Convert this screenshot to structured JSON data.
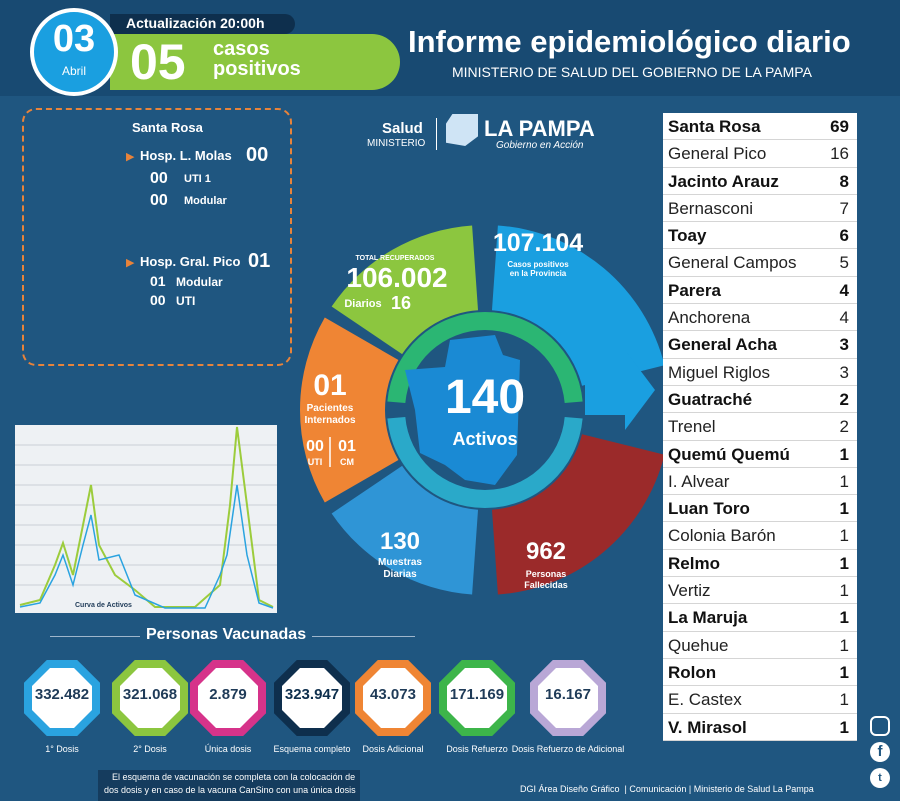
{
  "header": {
    "day": "03",
    "month": "Abril",
    "update": "Actualización 20:00h",
    "new_cases": "05",
    "new_cases_line1": "casos",
    "new_cases_line2": "positivos",
    "title": "Informe epidemiológico diario",
    "subtitle": "MINISTERIO DE SALUD DEL GOBIERNO DE LA PAMPA"
  },
  "hospitals": {
    "region": "Santa Rosa",
    "items": [
      {
        "name": "Hosp. L. Molas",
        "value": "00",
        "sub": [
          {
            "value": "00",
            "label": "UTI 1"
          },
          {
            "value": "00",
            "label": "Modular"
          }
        ]
      },
      {
        "name": "Hosp. Gral. Pico",
        "value": "01",
        "sub": [
          {
            "value": "01",
            "label": "Modular"
          },
          {
            "value": "00",
            "label": "UTI"
          }
        ]
      }
    ]
  },
  "logo": {
    "salud": "Salud",
    "ministerio": "MINISTERIO",
    "province": "LA PAMPA",
    "slogan": "Gobierno en Acción"
  },
  "wheel": {
    "total": {
      "value": "107.104",
      "line1": "Casos positivos",
      "line2": "en la Provincia"
    },
    "recovered": {
      "label": "TOTAL RECUPERADOS",
      "value": "106.002",
      "daily_label": "Diarios",
      "daily": "16"
    },
    "hospitalized": {
      "value": "01",
      "line1": "Pacientes",
      "line2": "Internados",
      "uti": "00",
      "uti_label": "UTI",
      "cm": "01",
      "cm_label": "CM"
    },
    "samples": {
      "value": "130",
      "line1": "Muestras",
      "line2": "Diarias"
    },
    "deaths": {
      "value": "962",
      "line1": "Personas",
      "line2": "Fallecidas"
    },
    "active": {
      "value": "140",
      "label": "Activos"
    }
  },
  "curve": {
    "label": "Curva de Activos"
  },
  "vaccines": {
    "title": "Personas Vacunadas",
    "items": [
      {
        "value": "332.482",
        "label": "1° Dosis"
      },
      {
        "value": "321.068",
        "label": "2° Dosis"
      },
      {
        "value": "2.879",
        "label": "Única dosis"
      },
      {
        "value": "323.947",
        "label": "Esquema completo"
      },
      {
        "value": "43.073",
        "label": "Dosis Adicional"
      },
      {
        "value": "171.169",
        "label": "Dosis Refuerzo"
      },
      {
        "value": "16.167",
        "label": "Dosis Refuerzo de Adicional"
      }
    ]
  },
  "localities": [
    [
      "Santa Rosa",
      "69"
    ],
    [
      "General Pico",
      "16"
    ],
    [
      "Jacinto Arauz",
      "8"
    ],
    [
      "Bernasconi",
      "7"
    ],
    [
      "Toay",
      "6"
    ],
    [
      "General Campos",
      "5"
    ],
    [
      "Parera",
      "4"
    ],
    [
      "Anchorena",
      "4"
    ],
    [
      "General Acha",
      "3"
    ],
    [
      "Miguel Riglos",
      "3"
    ],
    [
      "Guatraché",
      "2"
    ],
    [
      "Trenel",
      "2"
    ],
    [
      "Quemú Quemú",
      "1"
    ],
    [
      "I. Alvear",
      "1"
    ],
    [
      "Luan Toro",
      "1"
    ],
    [
      "Colonia Barón",
      "1"
    ],
    [
      "Relmo",
      "1"
    ],
    [
      "Vertiz",
      "1"
    ],
    [
      "La Maruja",
      "1"
    ],
    [
      "Quehue",
      "1"
    ],
    [
      "Rolon",
      "1"
    ],
    [
      "E. Castex",
      "1"
    ],
    [
      "V. Mirasol",
      "1"
    ]
  ],
  "footer": {
    "note_line1": "El esquema de vacunación se completa con la colocación de",
    "note_line2": "dos dosis y en caso de la vacuna CanSino con una única dosis",
    "credit": "DGI Área Diseño Gráfico  | Comunicación | Ministerio de Salud La Pampa"
  }
}
